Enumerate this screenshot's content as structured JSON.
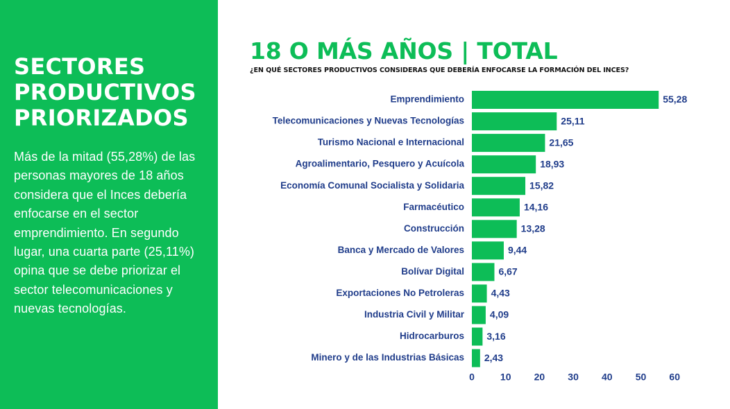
{
  "left_panel": {
    "title_lines": [
      "SECTORES",
      "PRODUCTIVOS",
      "PRIORIZADOS"
    ],
    "body": "Más de la mitad (55,28%) de las personas mayores de 18 años considera que el Inces debería enfocarse en el sector emprendimiento. En segundo lugar, una cuarta parte (25,11%) opina que se debe priorizar el sector telecomunicaciones y nuevas tecnologías."
  },
  "header": {
    "title": "18 O MÁS AÑOS | TOTAL",
    "subtitle": "¿EN QUÉ SECTORES PRODUCTIVOS CONSIDERAS QUE DEBERÍA ENFOCARSE LA FORMACIÓN DEL INCES?"
  },
  "colors": {
    "accent": "#0dbd57",
    "label": "#1f3c8a",
    "background": "#ffffff"
  },
  "chart_data": {
    "type": "bar",
    "orientation": "horizontal",
    "categories": [
      "Emprendimiento",
      "Telecomunicaciones y Nuevas Tecnologías",
      "Turismo Nacional e Internacional",
      "Agroalimentario, Pesquero y Acuícola",
      "Economía Comunal Socialista y Solidaria",
      "Farmacéutico",
      "Construcción",
      "Banca y Mercado de Valores",
      "Bolívar Digital",
      "Exportaciones No Petroleras",
      "Industria Civil y Militar",
      "Hidrocarburos",
      "Minero y de las Industrias Básicas"
    ],
    "values": [
      55.28,
      25.11,
      21.65,
      18.93,
      15.82,
      14.16,
      13.28,
      9.44,
      6.67,
      4.43,
      4.09,
      3.16,
      2.43
    ],
    "value_labels": [
      "55,28",
      "25,11",
      "21,65",
      "18,93",
      "15,82",
      "14,16",
      "13,28",
      "9,44",
      "6,67",
      "4,43",
      "4,09",
      "3,16",
      "2,43"
    ],
    "xlim": [
      0,
      60
    ],
    "xticks": [
      0,
      10,
      20,
      30,
      40,
      50,
      60
    ],
    "grid": false,
    "legend": "none",
    "bar_color": "#0dbd57"
  }
}
